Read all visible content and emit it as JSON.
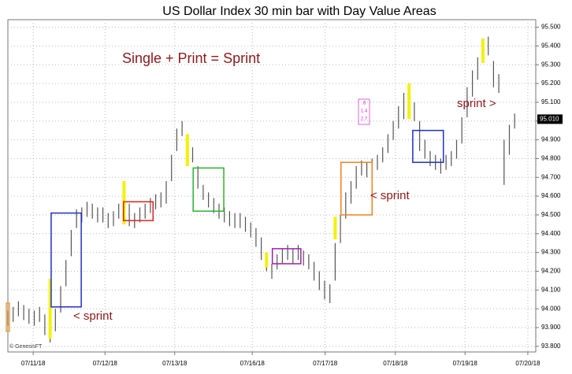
{
  "chart_data": {
    "type": "range-bar",
    "title": "US Dollar Index 30 min bar with Day Value Areas",
    "subtitle": "Single  + Print = Sprint",
    "credit": "© GenesisFT",
    "color": "#555555",
    "grid": true,
    "xlim": [
      0,
      100
    ],
    "ylim": [
      93.77,
      95.54
    ],
    "xticks": [
      {
        "value": 4.8,
        "label": "07/11/18"
      },
      {
        "value": 18.4,
        "label": "07/12/18"
      },
      {
        "value": 31.6,
        "label": "07/13/18"
      },
      {
        "value": 46.3,
        "label": "07/16/18"
      },
      {
        "value": 60.1,
        "label": "07/17/18"
      },
      {
        "value": 73.4,
        "label": "07/18/18"
      },
      {
        "value": 86.6,
        "label": "07/19/18"
      },
      {
        "value": 98.5,
        "label": "07/20/18"
      }
    ],
    "yticks": [
      {
        "value": 93.8,
        "label": "93.800"
      },
      {
        "value": 93.9,
        "label": "93.900"
      },
      {
        "value": 94.0,
        "label": "94.000"
      },
      {
        "value": 94.1,
        "label": "94.100"
      },
      {
        "value": 94.2,
        "label": "94.200"
      },
      {
        "value": 94.3,
        "label": "94.300"
      },
      {
        "value": 94.4,
        "label": "94.400"
      },
      {
        "value": 94.5,
        "label": "94.500"
      },
      {
        "value": 94.6,
        "label": "94.600"
      },
      {
        "value": 94.7,
        "label": "94.700"
      },
      {
        "value": 94.8,
        "label": "94.800"
      },
      {
        "value": 94.9,
        "label": "94.900"
      },
      {
        "value": 95.0,
        "label": "95.000"
      },
      {
        "value": 95.1,
        "label": "95.100"
      },
      {
        "value": 95.2,
        "label": "95.200"
      },
      {
        "value": 95.3,
        "label": "95.300"
      },
      {
        "value": 95.4,
        "label": "95.400"
      },
      {
        "value": 95.5,
        "label": "95.500"
      }
    ],
    "high": [
      93.99,
      94.01,
      94.04,
      94.02,
      94.0,
      93.99,
      94.01,
      93.97,
      93.95,
      94.0,
      94.12,
      94.26,
      94.42,
      94.53,
      94.54,
      94.57,
      94.56,
      94.54,
      94.54,
      94.51,
      94.52,
      94.56,
      94.68,
      94.56,
      94.51,
      94.54,
      94.56,
      94.59,
      94.61,
      94.62,
      94.68,
      94.82,
      94.96,
      95.0,
      94.93,
      94.86,
      94.76,
      94.66,
      94.62,
      94.59,
      94.56,
      94.54,
      94.52,
      94.51,
      94.51,
      94.49,
      94.46,
      94.43,
      94.38,
      94.3,
      94.24,
      94.29,
      94.32,
      94.34,
      94.32,
      94.34,
      94.31,
      94.29,
      94.25,
      94.2,
      94.15,
      94.13,
      94.35,
      94.5,
      94.62,
      94.68,
      94.76,
      94.79,
      94.78,
      94.8,
      94.82,
      94.86,
      94.93,
      95.0,
      95.08,
      95.15,
      95.2,
      95.1,
      95.0,
      94.9,
      94.84,
      94.82,
      94.8,
      94.82,
      94.84,
      94.9,
      95.02,
      95.18,
      95.27,
      95.34,
      95.44,
      95.45,
      95.32,
      95.25,
      94.9,
      94.98,
      95.04
    ],
    "low": [
      93.91,
      93.93,
      93.96,
      93.94,
      93.92,
      93.91,
      93.93,
      93.86,
      93.82,
      93.88,
      93.98,
      94.12,
      94.28,
      94.43,
      94.46,
      94.49,
      94.48,
      94.46,
      94.46,
      94.43,
      94.44,
      94.48,
      94.45,
      94.44,
      94.43,
      94.46,
      94.48,
      94.51,
      94.53,
      94.54,
      94.56,
      94.68,
      94.84,
      94.92,
      94.76,
      94.78,
      94.64,
      94.58,
      94.54,
      94.51,
      94.48,
      94.46,
      94.44,
      94.43,
      94.43,
      94.41,
      94.38,
      94.33,
      94.26,
      94.2,
      94.16,
      94.21,
      94.24,
      94.26,
      94.24,
      94.26,
      94.23,
      94.21,
      94.15,
      94.1,
      94.05,
      94.03,
      94.15,
      94.35,
      94.48,
      94.56,
      94.64,
      94.71,
      94.7,
      94.72,
      94.74,
      94.78,
      94.83,
      94.9,
      94.96,
      95.01,
      95.02,
      95.0,
      94.84,
      94.8,
      94.76,
      94.74,
      94.72,
      94.74,
      94.76,
      94.8,
      94.88,
      95.02,
      95.13,
      95.22,
      95.31,
      95.35,
      95.18,
      95.15,
      94.66,
      94.82,
      94.96
    ],
    "value_areas": [
      {
        "x": [
          -0.3,
          0.3
        ],
        "range": [
          93.88,
          94.03
        ],
        "color": "#f0a040"
      },
      {
        "x": [
          8.2,
          13.9
        ],
        "range": [
          94.01,
          94.51
        ],
        "color": "#2030c0"
      },
      {
        "x": [
          21.9,
          27.5
        ],
        "range": [
          94.47,
          94.57
        ],
        "color": "#e02020"
      },
      {
        "x": [
          35.1,
          40.9
        ],
        "range": [
          94.52,
          94.75
        ],
        "color": "#30b030"
      },
      {
        "x": [
          50.1,
          55.5
        ],
        "range": [
          94.24,
          94.32
        ],
        "color": "#a020b0"
      },
      {
        "x": [
          63.1,
          69.0
        ],
        "range": [
          94.5,
          94.78
        ],
        "color": "#f08020"
      },
      {
        "x": [
          76.7,
          82.5
        ],
        "range": [
          94.78,
          94.95
        ],
        "color": "#2030c0"
      }
    ],
    "single_prints": {
      "color": "#f2f200",
      "x": [
        8,
        22,
        34,
        49,
        62,
        76,
        90
      ],
      "range": [
        [
          93.84,
          94.16
        ],
        [
          94.45,
          94.68
        ],
        [
          94.76,
          94.93
        ],
        [
          94.22,
          94.3
        ],
        [
          94.37,
          94.49
        ],
        [
          95.01,
          95.2
        ],
        [
          95.31,
          95.44
        ]
      ]
    },
    "annotations": [
      "< sprint",
      "< sprint",
      "sprint >"
    ],
    "annotation_color": "#8b1a1a",
    "box_labels": [
      ".6",
      "1.4",
      "2.7"
    ],
    "last_price": {
      "value": 95.01,
      "label": "95.010"
    }
  }
}
